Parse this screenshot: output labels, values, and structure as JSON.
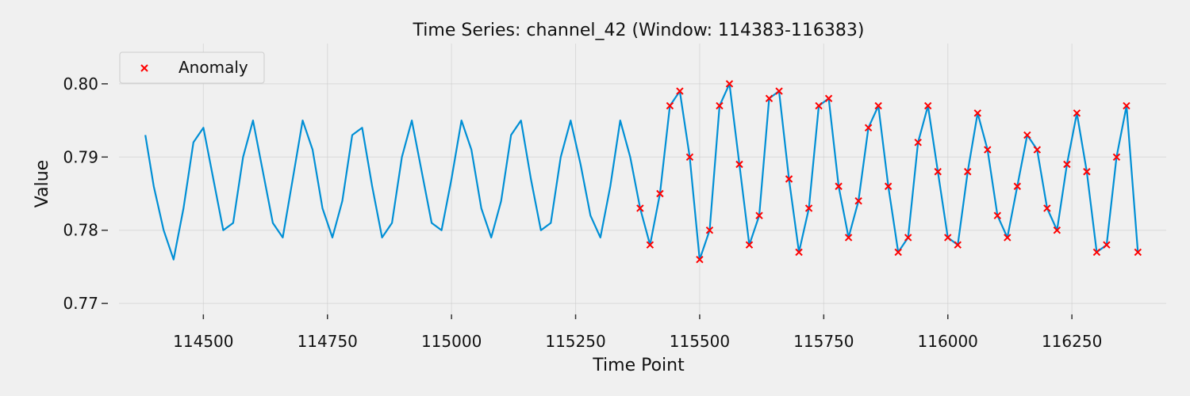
{
  "chart_data": {
    "type": "line",
    "title": "Time Series: channel_42 (Window: 114383-116383)",
    "xlabel": "Time Point",
    "ylabel": "Value",
    "xlim": [
      114330,
      116440
    ],
    "ylim": [
      0.7685,
      0.8055
    ],
    "x_ticks": [
      114500,
      114750,
      115000,
      115250,
      115500,
      115750,
      116000,
      116250
    ],
    "x_tick_labels": [
      "114500",
      "114750",
      "115000",
      "115250",
      "115500",
      "115750",
      "116000",
      "116250"
    ],
    "y_ticks": [
      0.77,
      0.78,
      0.79,
      0.8
    ],
    "y_tick_labels": [
      "0.77",
      "0.78",
      "0.79",
      "0.80"
    ],
    "grid": true,
    "legend": {
      "position": "top-left",
      "entries": [
        "Anomaly"
      ]
    },
    "colors": {
      "line": "#008fd5",
      "anomaly": "#ff0000",
      "background": "#f0f0f0",
      "grid": "#cbcbcb"
    },
    "anomaly_marker": "x",
    "anomaly_range": [
      115380,
      116383
    ],
    "series": [
      {
        "x": [
          114383,
          114400,
          114420,
          114440,
          114460,
          114480,
          114500,
          114520,
          114540,
          114560,
          114580,
          114600,
          114620,
          114640,
          114660,
          114680,
          114700,
          114720,
          114740,
          114760,
          114780,
          114800,
          114820,
          114840,
          114860,
          114880,
          114900,
          114920,
          114940,
          114960,
          114980,
          115000,
          115020,
          115040,
          115060,
          115080,
          115100,
          115120,
          115140,
          115160,
          115180,
          115200,
          115220,
          115240,
          115260,
          115280,
          115300,
          115320,
          115340,
          115360,
          115380,
          115400,
          115420,
          115440,
          115460,
          115480,
          115500,
          115520,
          115540,
          115560,
          115580,
          115600,
          115620,
          115640,
          115660,
          115680,
          115700,
          115720,
          115740,
          115760,
          115780,
          115800,
          115820,
          115840,
          115860,
          115880,
          115900,
          115920,
          115940,
          115960,
          115980,
          116000,
          116020,
          116040,
          116060,
          116080,
          116100,
          116120,
          116140,
          116160,
          116180,
          116200,
          116220,
          116240,
          116260,
          116280,
          116300,
          116320,
          116340,
          116360,
          116383
        ],
        "y": [
          0.793,
          0.786,
          0.78,
          0.776,
          0.783,
          0.792,
          0.794,
          0.787,
          0.78,
          0.781,
          0.79,
          0.795,
          0.788,
          0.781,
          0.779,
          0.787,
          0.795,
          0.791,
          0.783,
          0.779,
          0.784,
          0.793,
          0.794,
          0.786,
          0.779,
          0.781,
          0.79,
          0.795,
          0.788,
          0.781,
          0.78,
          0.787,
          0.795,
          0.791,
          0.783,
          0.779,
          0.784,
          0.793,
          0.795,
          0.787,
          0.78,
          0.781,
          0.79,
          0.795,
          0.789,
          0.782,
          0.779,
          0.786,
          0.795,
          0.79,
          0.783,
          0.778,
          0.785,
          0.797,
          0.799,
          0.79,
          0.776,
          0.78,
          0.797,
          0.8,
          0.789,
          0.778,
          0.782,
          0.798,
          0.799,
          0.787,
          0.777,
          0.783,
          0.797,
          0.798,
          0.786,
          0.779,
          0.784,
          0.794,
          0.797,
          0.786,
          0.777,
          0.779,
          0.792,
          0.797,
          0.788,
          0.779,
          0.778,
          0.788,
          0.796,
          0.791,
          0.782,
          0.779,
          0.786,
          0.793,
          0.791,
          0.783,
          0.78,
          0.789,
          0.796,
          0.788,
          0.777,
          0.778,
          0.79,
          0.797,
          0.777
        ]
      }
    ]
  }
}
